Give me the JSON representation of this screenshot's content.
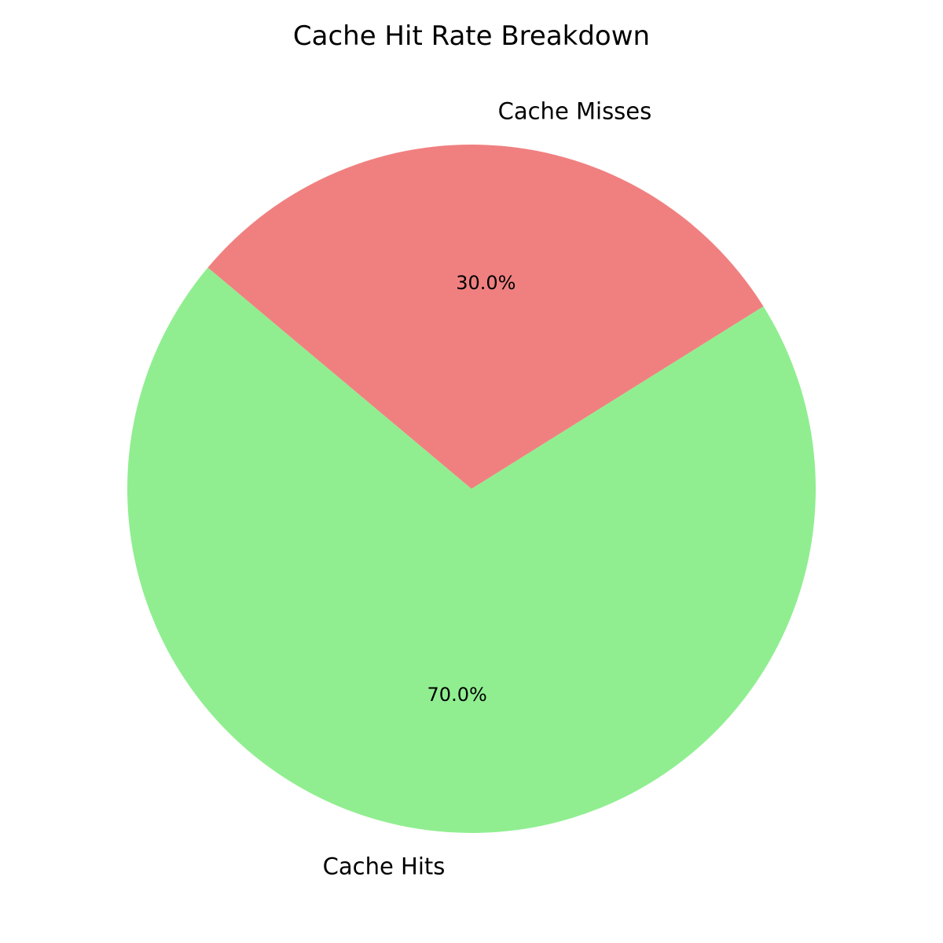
{
  "chart_data": {
    "type": "pie",
    "title": "Cache Hit Rate Breakdown",
    "start_angle_deg": 140,
    "direction": "counterclockwise",
    "slices": [
      {
        "label": "Cache Hits",
        "value": 70.0,
        "pct_label": "70.0%",
        "color": "#90EE90"
      },
      {
        "label": "Cache Misses",
        "value": 30.0,
        "pct_label": "30.0%",
        "color": "#F08080"
      }
    ]
  }
}
